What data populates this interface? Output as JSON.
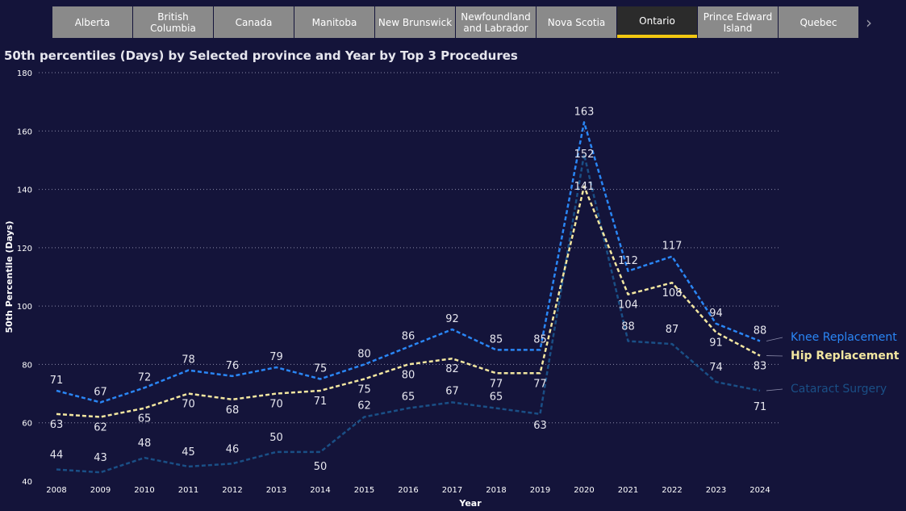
{
  "tabs": [
    {
      "label": "Alberta",
      "active": false
    },
    {
      "label": "British Columbia",
      "active": false
    },
    {
      "label": "Canada",
      "active": false
    },
    {
      "label": "Manitoba",
      "active": false
    },
    {
      "label": "New Brunswick",
      "active": false
    },
    {
      "label": "Newfoundland and Labrador",
      "active": false
    },
    {
      "label": "Nova Scotia",
      "active": false
    },
    {
      "label": "Ontario",
      "active": true
    },
    {
      "label": "Prince Edward Island",
      "active": false
    },
    {
      "label": "Quebec",
      "active": false
    }
  ],
  "tab_next_icon": "chevron-right-icon",
  "chart_data": {
    "type": "line",
    "title": "50th percentiles (Days) by Selected province and Year by Top 3 Procedures",
    "xlabel": "Year",
    "ylabel": "50th Percentile (Days)",
    "ylim": [
      40,
      180
    ],
    "yticks": [
      40,
      60,
      80,
      100,
      120,
      140,
      160,
      180
    ],
    "grid": true,
    "legend": "right",
    "categories": [
      "2008",
      "2009",
      "2010",
      "2011",
      "2012",
      "2013",
      "2014",
      "2015",
      "2016",
      "2017",
      "2018",
      "2019",
      "2020",
      "2021",
      "2022",
      "2023",
      "2024"
    ],
    "series": [
      {
        "name": "Knee Replacement",
        "color": "#2a86f5",
        "values": [
          71,
          67,
          72,
          78,
          76,
          79,
          75,
          80,
          86,
          92,
          85,
          85,
          163,
          112,
          117,
          94,
          88
        ]
      },
      {
        "name": "Hip Replacement",
        "color": "#f2e6a0",
        "values": [
          63,
          62,
          65,
          70,
          68,
          70,
          71,
          75,
          80,
          82,
          77,
          77,
          141,
          104,
          108,
          91,
          83
        ]
      },
      {
        "name": "Cataract Surgery",
        "color": "#1a4f86",
        "values": [
          44,
          43,
          48,
          45,
          46,
          50,
          50,
          62,
          65,
          67,
          65,
          63,
          152,
          88,
          87,
          74,
          71
        ]
      }
    ]
  }
}
